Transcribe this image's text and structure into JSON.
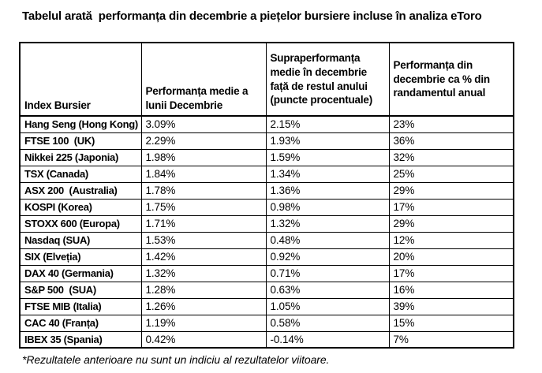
{
  "title": "Tabelul arată  performanța din decembrie a piețelor bursiere incluse în analiza eToro",
  "footnote": "*Rezultatele anterioare nu sunt un indiciu al rezultatelor viitoare.",
  "chart_data": {
    "type": "table",
    "title": "Tabelul arată performanța din decembrie a piețelor bursiere incluse în analiza eToro",
    "columns": [
      "Index Bursier",
      "Performanța medie a lunii Decembrie",
      "Supraperformanța medie în decembrie față de restul anului (puncte procentuale)",
      "Performanța din decembrie ca % din randamentul anual"
    ],
    "rows": [
      [
        "Hang Seng (Hong Kong)",
        "3.09%",
        "2.15%",
        "23%"
      ],
      [
        "FTSE 100  (UK)",
        "2.29%",
        "1.93%",
        "36%"
      ],
      [
        "Nikkei 225 (Japonia)",
        "1.98%",
        "1.59%",
        "32%"
      ],
      [
        "TSX (Canada)",
        "1.84%",
        "1.34%",
        "25%"
      ],
      [
        "ASX 200  (Australia)",
        "1.78%",
        "1.36%",
        "29%"
      ],
      [
        "KOSPI (Korea)",
        "1.75%",
        "0.98%",
        "17%"
      ],
      [
        "STOXX 600 (Europa)",
        "1.71%",
        "1.32%",
        "29%"
      ],
      [
        "Nasdaq (SUA)",
        "1.53%",
        "0.48%",
        "12%"
      ],
      [
        "SIX (Elveția)",
        "1.42%",
        "0.92%",
        "20%"
      ],
      [
        "DAX 40 (Germania)",
        "1.32%",
        "0.71%",
        "17%"
      ],
      [
        "S&P 500  (SUA)",
        "1.28%",
        "0.63%",
        "16%"
      ],
      [
        "FTSE MIB (Italia)",
        "1.26%",
        "1.05%",
        "39%"
      ],
      [
        "CAC 40 (Franța)",
        "1.19%",
        "0.58%",
        "15%"
      ],
      [
        "IBEX 35 (Spania)",
        "0.42%",
        "-0.14%",
        "7%"
      ]
    ],
    "values_numeric": {
      "avg_december_performance_pct": [
        3.09,
        2.29,
        1.98,
        1.84,
        1.78,
        1.75,
        1.71,
        1.53,
        1.42,
        1.32,
        1.28,
        1.26,
        1.19,
        0.42
      ],
      "december_outperformance_pp": [
        2.15,
        1.93,
        1.59,
        1.34,
        1.36,
        0.98,
        1.32,
        0.48,
        0.92,
        0.71,
        0.63,
        1.05,
        0.58,
        -0.14
      ],
      "december_as_pct_of_annual_return": [
        23,
        36,
        32,
        25,
        29,
        17,
        29,
        12,
        20,
        17,
        16,
        39,
        15,
        7
      ]
    }
  },
  "colors": {
    "text": "#000000",
    "border": "#000000",
    "background": "#ffffff"
  }
}
